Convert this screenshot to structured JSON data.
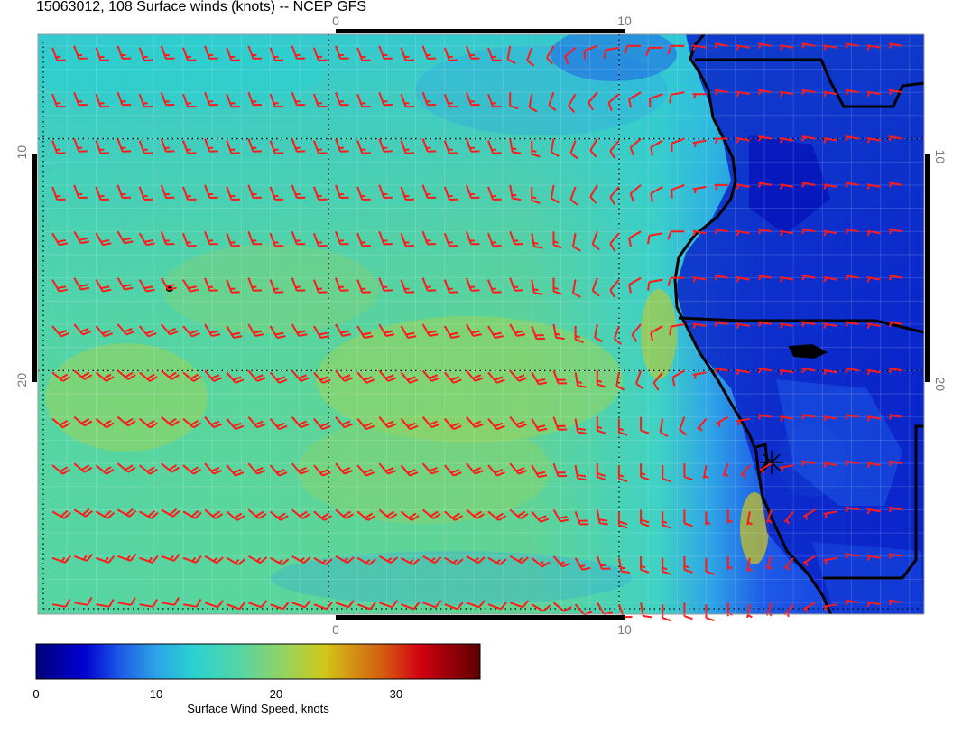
{
  "title": "15063012, 108 Surface winds (knots) -- NCEP GFS",
  "map": {
    "lon_labels": [
      "0",
      "10"
    ],
    "lat_labels": [
      "-10",
      "-20"
    ],
    "lon_range": [
      -10,
      20.5
    ],
    "lat_range": [
      -30.5,
      -5.5
    ],
    "grid_lons": [
      0,
      10
    ],
    "grid_lats": [
      -10,
      -20
    ],
    "barb_color": "#ff1a1a",
    "coast_color": "#000000",
    "barb_rows": [
      {
        "lat": -6,
        "speeds": [
          15,
          15,
          15,
          15,
          15,
          15,
          15,
          15,
          15,
          15,
          15,
          15,
          15,
          15,
          15,
          15,
          15,
          15,
          15,
          15,
          15,
          10,
          10,
          10,
          10,
          10,
          10,
          10,
          10,
          10,
          5,
          5,
          5,
          5,
          5,
          5,
          5,
          5,
          5,
          5
        ],
        "dirs": [
          160,
          160,
          160,
          160,
          160,
          160,
          160,
          160,
          160,
          160,
          160,
          160,
          160,
          160,
          160,
          160,
          160,
          160,
          160,
          160,
          160,
          190,
          200,
          210,
          230,
          250,
          260,
          270,
          270,
          270,
          280,
          280,
          280,
          280,
          280,
          280,
          280,
          280,
          280,
          280
        ]
      },
      {
        "lat": -8,
        "speeds": [
          15,
          15,
          15,
          15,
          15,
          15,
          15,
          15,
          15,
          15,
          15,
          15,
          15,
          15,
          15,
          15,
          15,
          15,
          15,
          15,
          15,
          10,
          10,
          10,
          10,
          10,
          10,
          10,
          10,
          10,
          5,
          5,
          5,
          5,
          5,
          5,
          5,
          5,
          5,
          5
        ],
        "dirs": [
          160,
          160,
          160,
          160,
          160,
          160,
          160,
          160,
          160,
          160,
          160,
          160,
          160,
          160,
          160,
          160,
          160,
          160,
          160,
          160,
          160,
          180,
          190,
          200,
          210,
          220,
          230,
          240,
          250,
          260,
          270,
          280,
          280,
          280,
          280,
          280,
          280,
          280,
          280,
          280
        ]
      },
      {
        "lat": -10,
        "speeds": [
          15,
          15,
          15,
          15,
          15,
          15,
          15,
          15,
          15,
          15,
          15,
          15,
          15,
          15,
          15,
          15,
          15,
          15,
          15,
          15,
          15,
          15,
          15,
          10,
          10,
          10,
          10,
          10,
          10,
          10,
          5,
          5,
          5,
          5,
          5,
          5,
          5,
          5,
          5,
          5
        ],
        "dirs": [
          160,
          160,
          160,
          160,
          160,
          160,
          160,
          160,
          160,
          160,
          160,
          160,
          160,
          160,
          160,
          160,
          160,
          160,
          160,
          160,
          160,
          170,
          180,
          190,
          200,
          210,
          220,
          230,
          240,
          250,
          260,
          270,
          280,
          280,
          280,
          280,
          280,
          280,
          280,
          280
        ]
      },
      {
        "lat": -12,
        "speeds": [
          15,
          15,
          15,
          15,
          15,
          15,
          15,
          15,
          15,
          15,
          15,
          15,
          15,
          15,
          15,
          15,
          15,
          15,
          15,
          15,
          15,
          15,
          15,
          10,
          10,
          10,
          10,
          10,
          10,
          10,
          5,
          5,
          5,
          5,
          5,
          5,
          5,
          5,
          5,
          5
        ],
        "dirs": [
          160,
          160,
          160,
          160,
          160,
          160,
          160,
          160,
          160,
          160,
          160,
          160,
          160,
          160,
          160,
          160,
          160,
          160,
          160,
          160,
          160,
          170,
          180,
          190,
          200,
          210,
          220,
          230,
          240,
          250,
          260,
          270,
          280,
          280,
          280,
          280,
          280,
          280,
          280,
          280
        ]
      },
      {
        "lat": -14,
        "speeds": [
          20,
          20,
          20,
          20,
          20,
          15,
          15,
          15,
          15,
          15,
          15,
          15,
          15,
          15,
          15,
          15,
          15,
          15,
          15,
          15,
          15,
          15,
          15,
          15,
          10,
          10,
          10,
          10,
          10,
          10,
          5,
          5,
          5,
          5,
          5,
          5,
          5,
          5,
          5,
          5
        ],
        "dirs": [
          150,
          150,
          150,
          150,
          150,
          160,
          160,
          160,
          160,
          160,
          160,
          160,
          160,
          160,
          160,
          160,
          160,
          160,
          160,
          160,
          160,
          160,
          170,
          180,
          190,
          200,
          220,
          240,
          260,
          270,
          280,
          280,
          280,
          280,
          280,
          280,
          280,
          280,
          280,
          280
        ]
      },
      {
        "lat": -16,
        "speeds": [
          20,
          20,
          20,
          20,
          20,
          20,
          20,
          15,
          15,
          15,
          15,
          15,
          15,
          15,
          15,
          15,
          15,
          15,
          15,
          15,
          15,
          15,
          15,
          15,
          10,
          10,
          10,
          10,
          10,
          10,
          5,
          5,
          5,
          5,
          5,
          5,
          5,
          5,
          5,
          5
        ],
        "dirs": [
          150,
          150,
          150,
          150,
          150,
          150,
          150,
          160,
          160,
          160,
          160,
          160,
          160,
          160,
          160,
          160,
          160,
          160,
          160,
          160,
          160,
          160,
          170,
          180,
          190,
          200,
          220,
          240,
          260,
          270,
          280,
          280,
          280,
          280,
          280,
          280,
          280,
          280,
          280,
          280
        ]
      },
      {
        "lat": -18,
        "speeds": [
          20,
          20,
          20,
          20,
          20,
          20,
          20,
          20,
          20,
          20,
          20,
          20,
          20,
          20,
          20,
          20,
          20,
          20,
          20,
          20,
          20,
          20,
          20,
          15,
          15,
          10,
          10,
          10,
          10,
          10,
          5,
          5,
          5,
          5,
          5,
          5,
          5,
          5,
          5,
          5
        ],
        "dirs": [
          140,
          140,
          140,
          140,
          140,
          140,
          140,
          150,
          150,
          150,
          150,
          150,
          150,
          150,
          150,
          150,
          150,
          150,
          150,
          150,
          150,
          150,
          160,
          170,
          180,
          190,
          200,
          220,
          240,
          260,
          280,
          280,
          280,
          280,
          280,
          280,
          280,
          280,
          280,
          280
        ]
      },
      {
        "lat": -20,
        "speeds": [
          20,
          20,
          20,
          20,
          20,
          20,
          20,
          20,
          20,
          20,
          20,
          20,
          20,
          20,
          20,
          20,
          20,
          20,
          20,
          20,
          20,
          20,
          20,
          20,
          15,
          15,
          10,
          10,
          10,
          10,
          5,
          5,
          5,
          5,
          5,
          5,
          5,
          5,
          5,
          5
        ],
        "dirs": [
          130,
          130,
          130,
          130,
          130,
          130,
          130,
          140,
          140,
          140,
          140,
          140,
          140,
          140,
          140,
          140,
          140,
          140,
          140,
          140,
          140,
          140,
          150,
          160,
          170,
          180,
          190,
          200,
          220,
          240,
          260,
          280,
          280,
          280,
          280,
          280,
          280,
          280,
          280,
          280
        ]
      },
      {
        "lat": -22,
        "speeds": [
          20,
          20,
          20,
          20,
          20,
          20,
          20,
          20,
          20,
          20,
          20,
          20,
          20,
          20,
          20,
          20,
          20,
          20,
          20,
          20,
          20,
          20,
          20,
          20,
          20,
          15,
          15,
          10,
          10,
          10,
          5,
          5,
          5,
          5,
          5,
          5,
          5,
          5,
          5,
          5
        ],
        "dirs": [
          130,
          130,
          130,
          130,
          130,
          130,
          130,
          140,
          140,
          140,
          140,
          140,
          140,
          140,
          140,
          140,
          140,
          140,
          140,
          140,
          140,
          140,
          150,
          160,
          170,
          180,
          180,
          180,
          190,
          200,
          220,
          240,
          260,
          280,
          280,
          280,
          280,
          280,
          280,
          280
        ]
      },
      {
        "lat": -24,
        "speeds": [
          20,
          20,
          20,
          20,
          20,
          20,
          20,
          20,
          20,
          20,
          20,
          20,
          20,
          20,
          20,
          20,
          20,
          20,
          20,
          20,
          20,
          20,
          20,
          20,
          20,
          20,
          15,
          15,
          10,
          10,
          5,
          5,
          5,
          5,
          5,
          5,
          5,
          5,
          5,
          5
        ],
        "dirs": [
          130,
          130,
          130,
          130,
          130,
          130,
          130,
          140,
          140,
          140,
          140,
          140,
          140,
          140,
          140,
          140,
          140,
          140,
          140,
          140,
          140,
          140,
          150,
          160,
          170,
          180,
          180,
          180,
          180,
          180,
          190,
          200,
          220,
          240,
          260,
          280,
          280,
          280,
          280,
          280
        ]
      },
      {
        "lat": -26,
        "speeds": [
          20,
          20,
          20,
          20,
          20,
          20,
          20,
          20,
          20,
          20,
          20,
          20,
          20,
          20,
          20,
          20,
          20,
          20,
          20,
          20,
          20,
          20,
          20,
          20,
          20,
          20,
          20,
          20,
          15,
          10,
          5,
          5,
          5,
          5,
          5,
          5,
          5,
          5,
          5,
          5
        ],
        "dirs": [
          120,
          120,
          120,
          120,
          120,
          120,
          120,
          130,
          130,
          130,
          130,
          130,
          130,
          130,
          130,
          130,
          130,
          130,
          130,
          130,
          130,
          130,
          140,
          150,
          160,
          170,
          180,
          180,
          180,
          180,
          180,
          180,
          190,
          200,
          220,
          240,
          260,
          280,
          280,
          280
        ]
      },
      {
        "lat": -28,
        "speeds": [
          15,
          15,
          15,
          15,
          15,
          15,
          15,
          15,
          15,
          15,
          15,
          15,
          15,
          15,
          15,
          15,
          15,
          15,
          15,
          15,
          15,
          15,
          15,
          15,
          15,
          15,
          15,
          15,
          15,
          15,
          10,
          5,
          5,
          5,
          5,
          5,
          5,
          5,
          5,
          5
        ],
        "dirs": [
          110,
          110,
          110,
          110,
          110,
          110,
          110,
          120,
          120,
          120,
          120,
          120,
          120,
          120,
          120,
          120,
          120,
          120,
          120,
          120,
          120,
          120,
          130,
          140,
          150,
          160,
          170,
          180,
          180,
          180,
          180,
          180,
          190,
          200,
          220,
          240,
          260,
          280,
          280,
          280
        ]
      },
      {
        "lat": -30,
        "speeds": [
          10,
          10,
          10,
          10,
          10,
          10,
          10,
          10,
          10,
          10,
          10,
          10,
          10,
          10,
          10,
          10,
          10,
          10,
          10,
          10,
          10,
          10,
          10,
          10,
          10,
          10,
          10,
          10,
          10,
          10,
          10,
          5,
          5,
          5,
          5,
          5,
          5,
          5,
          5,
          5
        ],
        "dirs": [
          100,
          100,
          100,
          100,
          100,
          100,
          100,
          110,
          110,
          110,
          110,
          110,
          110,
          110,
          110,
          110,
          110,
          110,
          110,
          110,
          110,
          110,
          120,
          130,
          140,
          150,
          160,
          170,
          180,
          180,
          180,
          180,
          190,
          200,
          220,
          240,
          260,
          280,
          280,
          280
        ]
      }
    ]
  },
  "colorbar": {
    "label": "Surface Wind Speed, knots",
    "tick_labels": [
      "0",
      "10",
      "20",
      "30"
    ],
    "range": [
      0,
      37
    ],
    "stops": [
      {
        "v": 0,
        "c": "#00007a"
      },
      {
        "v": 4,
        "c": "#0000d0"
      },
      {
        "v": 7,
        "c": "#1d5ae6"
      },
      {
        "v": 10,
        "c": "#2ea3e6"
      },
      {
        "v": 13,
        "c": "#29d1d2"
      },
      {
        "v": 17,
        "c": "#55d5a4"
      },
      {
        "v": 21,
        "c": "#9ad35a"
      },
      {
        "v": 24,
        "c": "#cfc81a"
      },
      {
        "v": 26,
        "c": "#d49b14"
      },
      {
        "v": 29,
        "c": "#d25a10"
      },
      {
        "v": 32,
        "c": "#d20010"
      },
      {
        "v": 37,
        "c": "#5a0000"
      }
    ]
  }
}
